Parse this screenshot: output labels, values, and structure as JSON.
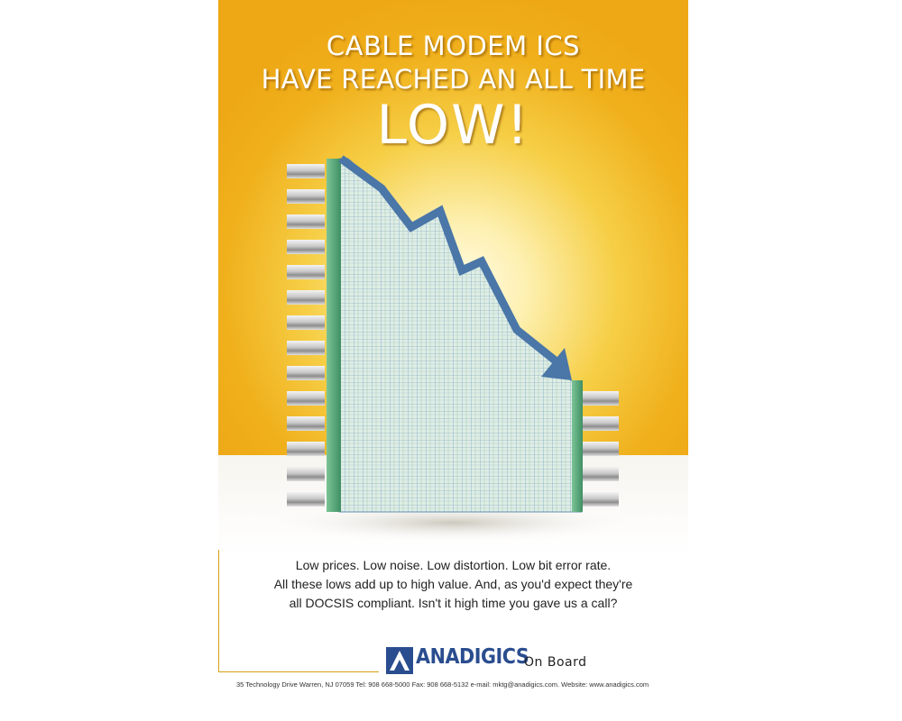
{
  "headline": {
    "line1": "CABLE MODEM ICS",
    "line2": "HAVE REACHED AN ALL TIME",
    "line3": "LOW!"
  },
  "body_copy": [
    "Low prices. Low noise. Low distortion. Low bit error rate.",
    "All these lows add up to high value. And, as you'd expect they're",
    "all DOCSIS compliant. Isn't it high time you gave us a call?"
  ],
  "brand": {
    "name": "ANADIGICS",
    "tagline": "On Board",
    "logo_icon": "anadigics-triangle-logo"
  },
  "footer": {
    "contact": "35 Technology Drive  Warren, NJ  07059   Tel: 908 668-5000  Fax: 908 668-5132  e-mail: mktg@anadigics.com.   Website: www.anadigics.com"
  },
  "colors": {
    "background_gold": "#f0b01c",
    "arrow_blue": "#4a76a8",
    "chip_green": "#5aa87a",
    "brand_blue": "#2a4d8f"
  }
}
